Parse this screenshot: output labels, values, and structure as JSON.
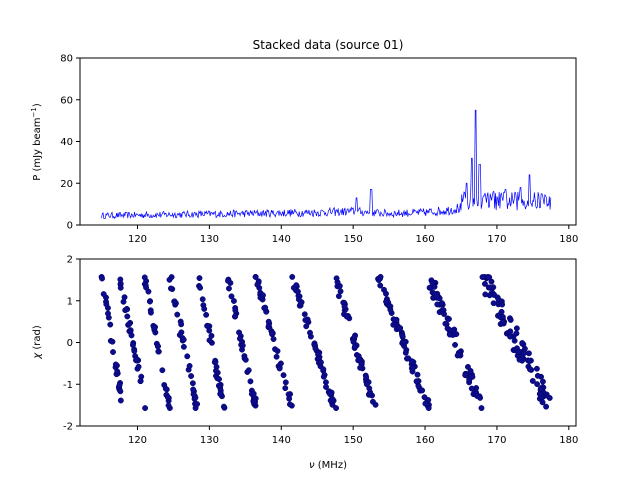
{
  "figure": {
    "title": "Stacked data (source 01)",
    "line_color": "#0000ff",
    "marker_color": "#0d0d8c",
    "marker_edge_color": "#000066"
  },
  "chart_data": [
    {
      "type": "line",
      "title": "Stacked data (source 01)",
      "xlabel": "",
      "ylabel": "P (mJy beam",
      "ylabel_sup": "−1",
      "ylabel_end": ")",
      "xlim": [
        112,
        181
      ],
      "ylim": [
        0,
        80
      ],
      "xticks": [
        120,
        130,
        140,
        150,
        160,
        170,
        180
      ],
      "yticks": [
        0,
        20,
        40,
        60,
        80
      ],
      "grid": false,
      "x_range": [
        115,
        177.5
      ],
      "baseline": [
        [
          115,
          4.5
        ],
        [
          125,
          5
        ],
        [
          135,
          5.5
        ],
        [
          145,
          6
        ],
        [
          150,
          6.5
        ],
        [
          155,
          5.5
        ],
        [
          160,
          6
        ],
        [
          163,
          7
        ],
        [
          164.5,
          8
        ]
      ],
      "features": [
        {
          "x": 150.5,
          "y": 13
        },
        {
          "x": 152.5,
          "y": 17
        },
        {
          "x": 165.8,
          "y": 20
        },
        {
          "x": 166.5,
          "y": 32
        },
        {
          "x": 167.0,
          "y": 55
        },
        {
          "x": 167.6,
          "y": 29
        },
        {
          "x": 168.2,
          "y": 14
        },
        {
          "x": 169.5,
          "y": 16
        },
        {
          "x": 171.2,
          "y": 17
        },
        {
          "x": 173.3,
          "y": 18
        },
        {
          "x": 174.5,
          "y": 24
        },
        {
          "x": 176.2,
          "y": 15
        }
      ],
      "late_noise_level": 9
    },
    {
      "type": "scatter",
      "xlabel": "ν (MHz)",
      "xlabel_symbol": "ν",
      "xlabel_unit": " (MHz)",
      "ylabel": "χ (rad)",
      "ylabel_symbol": "χ",
      "ylabel_unit": " (rad)",
      "xlim": [
        112,
        181
      ],
      "ylim": [
        -2,
        2
      ],
      "xticks": [
        120,
        130,
        140,
        150,
        160,
        170,
        180
      ],
      "yticks": [
        -2,
        -1,
        0,
        1,
        2
      ],
      "grid": false,
      "y_wrap": [
        -1.5708,
        1.5708
      ],
      "stripes": [
        {
          "x_start": 115.0,
          "x_end": 118.0,
          "scatter": 0.08
        },
        {
          "x_start": 117.5,
          "x_end": 121.2,
          "scatter": 0.08
        },
        {
          "x_start": 121.0,
          "x_end": 124.5,
          "scatter": 0.08
        },
        {
          "x_start": 124.5,
          "x_end": 128.2,
          "scatter": 0.08
        },
        {
          "x_start": 128.5,
          "x_end": 132.0,
          "scatter": 0.08
        },
        {
          "x_start": 132.5,
          "x_end": 136.5,
          "scatter": 0.08
        },
        {
          "x_start": 136.5,
          "x_end": 141.5,
          "scatter": 0.09
        },
        {
          "x_start": 141.5,
          "x_end": 147.5,
          "scatter": 0.1
        },
        {
          "x_start": 147.5,
          "x_end": 153.0,
          "scatter": 0.12
        },
        {
          "x_start": 153.5,
          "x_end": 160.5,
          "scatter": 0.14
        },
        {
          "x_start": 160.5,
          "x_end": 168.0,
          "scatter": 0.22
        },
        {
          "x_start": 168.0,
          "x_end": 177.5,
          "scatter": 0.3
        }
      ]
    }
  ]
}
